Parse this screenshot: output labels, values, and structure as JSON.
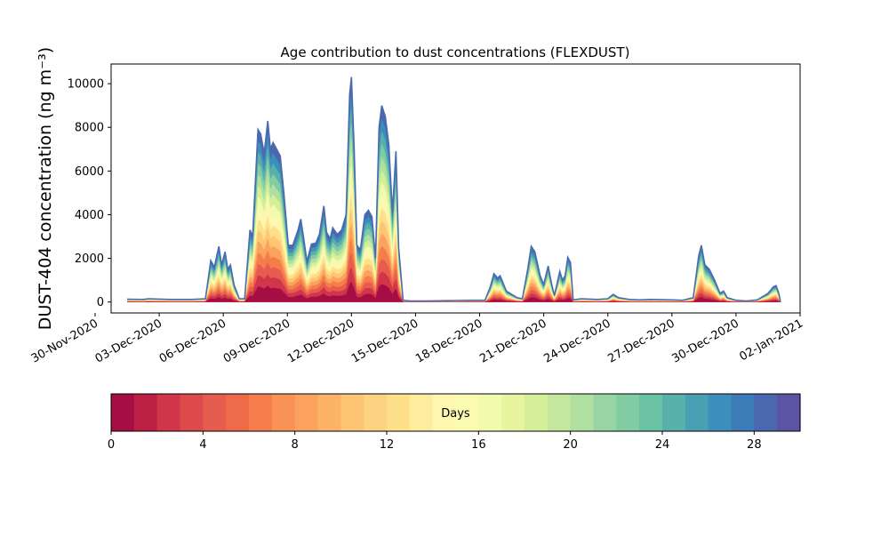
{
  "chart_data": {
    "type": "area",
    "title": "Age contribution to dust concentrations (FLEXDUST)",
    "ylabel": "DUST-404 concentration (ng m⁻³)",
    "xlabel": "",
    "ylim": [
      -500,
      10900
    ],
    "xlim": [
      "2020-11-30T18:00",
      "2021-01-02T00:00"
    ],
    "grid": false,
    "yticks": [
      0,
      2000,
      4000,
      6000,
      8000,
      10000
    ],
    "ytick_labels": [
      "0",
      "2000",
      "4000",
      "6000",
      "8000",
      "10000"
    ],
    "xticks": [
      "2020-11-30",
      "2020-12-03",
      "2020-12-06",
      "2020-12-09",
      "2020-12-12",
      "2020-12-15",
      "2020-12-18",
      "2020-12-21",
      "2020-12-24",
      "2020-12-27",
      "2020-12-30",
      "2021-01-02"
    ],
    "xtick_labels": [
      "30-Nov-2020",
      "03-Dec-2020",
      "06-Dec-2020",
      "09-Dec-2020",
      "12-Dec-2020",
      "15-Dec-2020",
      "18-Dec-2020",
      "21-Dec-2020",
      "24-Dec-2020",
      "27-Dec-2020",
      "30-Dec-2020",
      "02-Jan-2021"
    ],
    "series": [
      {
        "color": "#4a6baf",
        "points": [
          [
            "2020-12-01T12:00",
            130
          ],
          [
            "2020-12-02T06:00",
            120
          ],
          [
            "2020-12-02T12:00",
            150
          ],
          [
            "2020-12-03T12:00",
            120
          ],
          [
            "2020-12-04T12:00",
            120
          ],
          [
            "2020-12-05T04:00",
            150
          ],
          [
            "2020-12-05T10:00",
            1900
          ],
          [
            "2020-12-05T14:00",
            1600
          ],
          [
            "2020-12-05T19:00",
            2550
          ],
          [
            "2020-12-05T22:00",
            1700
          ],
          [
            "2020-12-06T02:00",
            2300
          ],
          [
            "2020-12-06T05:00",
            1500
          ],
          [
            "2020-12-06T08:00",
            1700
          ],
          [
            "2020-12-06T12:00",
            800
          ],
          [
            "2020-12-06T18:00",
            150
          ],
          [
            "2020-12-07T00:00",
            150
          ],
          [
            "2020-12-07T06:00",
            3300
          ],
          [
            "2020-12-07T09:00",
            3000
          ],
          [
            "2020-12-07T15:00",
            7900
          ],
          [
            "2020-12-07T18:00",
            7700
          ],
          [
            "2020-12-07T22:00",
            6800
          ],
          [
            "2020-12-08T02:00",
            8300
          ],
          [
            "2020-12-08T05:00",
            7000
          ],
          [
            "2020-12-08T08:00",
            7300
          ],
          [
            "2020-12-08T12:00",
            7000
          ],
          [
            "2020-12-08T16:00",
            6700
          ],
          [
            "2020-12-08T20:00",
            5000
          ],
          [
            "2020-12-09T01:00",
            2600
          ],
          [
            "2020-12-09T06:00",
            2600
          ],
          [
            "2020-12-09T12:00",
            3300
          ],
          [
            "2020-12-09T15:00",
            3800
          ],
          [
            "2020-12-09T18:00",
            3000
          ],
          [
            "2020-12-09T22:00",
            1850
          ],
          [
            "2020-12-10T03:00",
            2650
          ],
          [
            "2020-12-10T08:00",
            2700
          ],
          [
            "2020-12-10T12:00",
            3100
          ],
          [
            "2020-12-10T17:00",
            4400
          ],
          [
            "2020-12-10T20:00",
            3200
          ],
          [
            "2020-12-11T00:00",
            2900
          ],
          [
            "2020-12-11T03:00",
            3400
          ],
          [
            "2020-12-11T08:00",
            3100
          ],
          [
            "2020-12-11T13:00",
            3300
          ],
          [
            "2020-12-11T18:00",
            4000
          ],
          [
            "2020-12-11T22:00",
            9500
          ],
          [
            "2020-12-12T00:00",
            10300
          ],
          [
            "2020-12-12T03:00",
            7000
          ],
          [
            "2020-12-12T06:00",
            2600
          ],
          [
            "2020-12-12T10:00",
            2400
          ],
          [
            "2020-12-12T15:00",
            4000
          ],
          [
            "2020-12-12T19:00",
            4200
          ],
          [
            "2020-12-12T23:00",
            3900
          ],
          [
            "2020-12-13T03:00",
            2000
          ],
          [
            "2020-12-13T07:00",
            8000
          ],
          [
            "2020-12-13T10:00",
            9000
          ],
          [
            "2020-12-13T14:00",
            8500
          ],
          [
            "2020-12-13T18:00",
            7200
          ],
          [
            "2020-12-13T22:00",
            4100
          ],
          [
            "2020-12-14T02:00",
            6900
          ],
          [
            "2020-12-14T05:00",
            2500
          ],
          [
            "2020-12-14T10:00",
            80
          ],
          [
            "2020-12-14T18:00",
            50
          ],
          [
            "2020-12-15T12:00",
            50
          ],
          [
            "2020-12-16T12:00",
            60
          ],
          [
            "2020-12-17T12:00",
            80
          ],
          [
            "2020-12-18T06:00",
            80
          ],
          [
            "2020-12-18T12:00",
            700
          ],
          [
            "2020-12-18T16:00",
            1300
          ],
          [
            "2020-12-18T20:00",
            1100
          ],
          [
            "2020-12-18T23:00",
            1200
          ],
          [
            "2020-12-19T06:00",
            500
          ],
          [
            "2020-12-19T18:00",
            200
          ],
          [
            "2020-12-20T00:00",
            150
          ],
          [
            "2020-12-20T06:00",
            1500
          ],
          [
            "2020-12-20T10:00",
            2550
          ],
          [
            "2020-12-20T14:00",
            2300
          ],
          [
            "2020-12-20T20:00",
            1200
          ],
          [
            "2020-12-21T00:00",
            800
          ],
          [
            "2020-12-21T05:00",
            1650
          ],
          [
            "2020-12-21T09:00",
            800
          ],
          [
            "2020-12-21T12:00",
            300
          ],
          [
            "2020-12-21T18:00",
            1400
          ],
          [
            "2020-12-21T21:00",
            1000
          ],
          [
            "2020-12-22T00:00",
            1200
          ],
          [
            "2020-12-22T03:00",
            2050
          ],
          [
            "2020-12-22T06:00",
            1800
          ],
          [
            "2020-12-22T09:00",
            100
          ],
          [
            "2020-12-22T18:00",
            150
          ],
          [
            "2020-12-23T12:00",
            120
          ],
          [
            "2020-12-24T00:00",
            150
          ],
          [
            "2020-12-24T06:00",
            350
          ],
          [
            "2020-12-24T12:00",
            200
          ],
          [
            "2020-12-25T00:00",
            120
          ],
          [
            "2020-12-25T12:00",
            100
          ],
          [
            "2020-12-26T00:00",
            120
          ],
          [
            "2020-12-27T00:00",
            100
          ],
          [
            "2020-12-27T12:00",
            80
          ],
          [
            "2020-12-28T00:00",
            200
          ],
          [
            "2020-12-28T06:00",
            2100
          ],
          [
            "2020-12-28T09:00",
            2600
          ],
          [
            "2020-12-28T13:00",
            1700
          ],
          [
            "2020-12-28T18:00",
            1500
          ],
          [
            "2020-12-29T00:00",
            1000
          ],
          [
            "2020-12-29T06:00",
            400
          ],
          [
            "2020-12-29T10:00",
            500
          ],
          [
            "2020-12-29T14:00",
            200
          ],
          [
            "2020-12-30T00:00",
            80
          ],
          [
            "2020-12-30T12:00",
            50
          ],
          [
            "2020-12-31T00:00",
            100
          ],
          [
            "2020-12-31T12:00",
            400
          ],
          [
            "2020-12-31T18:00",
            700
          ],
          [
            "2020-12-31T21:00",
            750
          ],
          [
            "2021-01-01T00:00",
            400
          ],
          [
            "2021-01-01T02:00",
            0
          ]
        ]
      }
    ],
    "age_colormap": {
      "label": "Days",
      "range": [
        0,
        30
      ],
      "levels": 30,
      "ticks": [
        0,
        4,
        8,
        12,
        16,
        20,
        24,
        28
      ],
      "tick_labels": [
        "0",
        "4",
        "8",
        "12",
        "16",
        "20",
        "24",
        "28"
      ],
      "colors": [
        "#a50d45",
        "#bd1f45",
        "#d1354a",
        "#dc4a4c",
        "#e65d4f",
        "#ee6b49",
        "#f57c4b",
        "#f89257",
        "#fba25f",
        "#fdb365",
        "#fdc574",
        "#fdd382",
        "#fee08b",
        "#feec9f",
        "#fff6b0",
        "#fbfbb3",
        "#f2fab0",
        "#e6f59e",
        "#d5ef99",
        "#c3e79f",
        "#b0dfa2",
        "#98d5a4",
        "#82cca4",
        "#6cc2a5",
        "#59b0aa",
        "#4aa0b3",
        "#3c8ebb",
        "#3d7ab8",
        "#4a67b0",
        "#5b53a3"
      ]
    }
  }
}
